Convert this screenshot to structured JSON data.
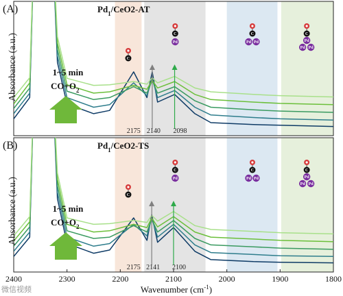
{
  "chart_data": [
    {
      "type": "line",
      "panel_label": "(A)",
      "title": "Pd1/CeO2-AT",
      "ylabel": "Absorbance (a.u.)",
      "x_range": [
        2400,
        1800
      ],
      "annotation": {
        "line1": "1~5 min",
        "line2": "CO+O2"
      },
      "peak_labels": [
        "2175",
        "2140",
        "2098"
      ],
      "peaks": [
        2175,
        2140,
        2098
      ],
      "series": [
        {
          "color": "#0e3b66",
          "values": [
            [
              2400,
              0.22
            ],
            [
              2370,
              0.55
            ],
            [
              2360,
              3.5
            ],
            [
              2330,
              3.5
            ],
            [
              2318,
              1.1
            ],
            [
              2300,
              0.45
            ],
            [
              2250,
              0.3
            ],
            [
              2220,
              0.35
            ],
            [
              2175,
              0.95
            ],
            [
              2150,
              0.55
            ],
            [
              2140,
              0.95
            ],
            [
              2130,
              0.48
            ],
            [
              2098,
              0.6
            ],
            [
              2060,
              0.3
            ],
            [
              2030,
              0.16
            ],
            [
              1950,
              0.13
            ],
            [
              1900,
              0.12
            ],
            [
              1800,
              0.1
            ]
          ]
        },
        {
          "color": "#2e7d8c",
          "values": [
            [
              2400,
              0.3
            ],
            [
              2370,
              0.62
            ],
            [
              2360,
              3.5
            ],
            [
              2330,
              3.5
            ],
            [
              2318,
              1.2
            ],
            [
              2300,
              0.55
            ],
            [
              2250,
              0.4
            ],
            [
              2220,
              0.44
            ],
            [
              2175,
              0.78
            ],
            [
              2150,
              0.58
            ],
            [
              2140,
              0.85
            ],
            [
              2130,
              0.55
            ],
            [
              2098,
              0.66
            ],
            [
              2060,
              0.4
            ],
            [
              2030,
              0.28
            ],
            [
              1950,
              0.24
            ],
            [
              1900,
              0.22
            ],
            [
              1800,
              0.2
            ]
          ]
        },
        {
          "color": "#3a9a60",
          "values": [
            [
              2400,
              0.38
            ],
            [
              2370,
              0.7
            ],
            [
              2360,
              3.5
            ],
            [
              2330,
              3.5
            ],
            [
              2318,
              1.3
            ],
            [
              2300,
              0.65
            ],
            [
              2250,
              0.52
            ],
            [
              2220,
              0.55
            ],
            [
              2175,
              0.72
            ],
            [
              2150,
              0.62
            ],
            [
              2140,
              0.82
            ],
            [
              2130,
              0.62
            ],
            [
              2098,
              0.72
            ],
            [
              2060,
              0.5
            ],
            [
              2030,
              0.4
            ],
            [
              1950,
              0.36
            ],
            [
              1900,
              0.34
            ],
            [
              1800,
              0.32
            ]
          ]
        },
        {
          "color": "#6bbf3a",
          "values": [
            [
              2400,
              0.45
            ],
            [
              2370,
              0.78
            ],
            [
              2360,
              3.5
            ],
            [
              2330,
              3.5
            ],
            [
              2318,
              1.4
            ],
            [
              2300,
              0.75
            ],
            [
              2250,
              0.62
            ],
            [
              2220,
              0.64
            ],
            [
              2175,
              0.74
            ],
            [
              2150,
              0.68
            ],
            [
              2140,
              0.82
            ],
            [
              2130,
              0.7
            ],
            [
              2098,
              0.8
            ],
            [
              2060,
              0.6
            ],
            [
              2030,
              0.52
            ],
            [
              1950,
              0.48
            ],
            [
              1900,
              0.46
            ],
            [
              1800,
              0.44
            ]
          ]
        },
        {
          "color": "#a8e08a",
          "values": [
            [
              2400,
              0.55
            ],
            [
              2370,
              0.86
            ],
            [
              2360,
              3.5
            ],
            [
              2330,
              3.5
            ],
            [
              2318,
              1.5
            ],
            [
              2300,
              0.85
            ],
            [
              2250,
              0.74
            ],
            [
              2220,
              0.75
            ],
            [
              2175,
              0.8
            ],
            [
              2150,
              0.76
            ],
            [
              2140,
              0.86
            ],
            [
              2130,
              0.78
            ],
            [
              2098,
              0.88
            ],
            [
              2060,
              0.7
            ],
            [
              2030,
              0.64
            ],
            [
              1950,
              0.6
            ],
            [
              1900,
              0.58
            ],
            [
              1800,
              0.56
            ]
          ]
        }
      ]
    },
    {
      "type": "line",
      "panel_label": "(B)",
      "title": "Pd1/CeO2-TS",
      "ylabel": "Absorbance (a.u.)",
      "xlabel": "Wavenumber (cm-1)",
      "x_range": [
        2400,
        1800
      ],
      "x_ticks": [
        2400,
        2300,
        2200,
        2100,
        2000,
        1900,
        1800
      ],
      "annotation": {
        "line1": "1~5 min",
        "line2": "CO+O2"
      },
      "peak_labels": [
        "2175",
        "2141",
        "2100"
      ],
      "peaks": [
        2175,
        2141,
        2100
      ],
      "series": [
        {
          "color": "#0e3b66",
          "values": [
            [
              2400,
              0.2
            ],
            [
              2370,
              0.5
            ],
            [
              2360,
              3.5
            ],
            [
              2330,
              3.5
            ],
            [
              2318,
              1.1
            ],
            [
              2300,
              0.4
            ],
            [
              2250,
              0.25
            ],
            [
              2220,
              0.3
            ],
            [
              2175,
              0.8
            ],
            [
              2150,
              0.45
            ],
            [
              2141,
              0.85
            ],
            [
              2130,
              0.42
            ],
            [
              2100,
              0.65
            ],
            [
              2060,
              0.28
            ],
            [
              2030,
              0.15
            ],
            [
              1950,
              0.12
            ],
            [
              1900,
              0.11
            ],
            [
              1800,
              0.1
            ]
          ]
        },
        {
          "color": "#2e7d8c",
          "values": [
            [
              2400,
              0.28
            ],
            [
              2370,
              0.58
            ],
            [
              2360,
              3.5
            ],
            [
              2330,
              3.5
            ],
            [
              2318,
              1.2
            ],
            [
              2300,
              0.5
            ],
            [
              2250,
              0.36
            ],
            [
              2220,
              0.4
            ],
            [
              2175,
              0.7
            ],
            [
              2150,
              0.52
            ],
            [
              2141,
              0.8
            ],
            [
              2130,
              0.5
            ],
            [
              2100,
              0.7
            ],
            [
              2060,
              0.38
            ],
            [
              2030,
              0.26
            ],
            [
              1950,
              0.23
            ],
            [
              1900,
              0.21
            ],
            [
              1800,
              0.2
            ]
          ]
        },
        {
          "color": "#3a9a60",
          "values": [
            [
              2400,
              0.36
            ],
            [
              2370,
              0.66
            ],
            [
              2360,
              3.5
            ],
            [
              2330,
              3.5
            ],
            [
              2318,
              1.3
            ],
            [
              2300,
              0.6
            ],
            [
              2250,
              0.48
            ],
            [
              2220,
              0.5
            ],
            [
              2175,
              0.68
            ],
            [
              2150,
              0.58
            ],
            [
              2141,
              0.78
            ],
            [
              2130,
              0.58
            ],
            [
              2100,
              0.76
            ],
            [
              2060,
              0.48
            ],
            [
              2030,
              0.38
            ],
            [
              1950,
              0.35
            ],
            [
              1900,
              0.33
            ],
            [
              1800,
              0.31
            ]
          ]
        },
        {
          "color": "#6bbf3a",
          "values": [
            [
              2400,
              0.44
            ],
            [
              2370,
              0.74
            ],
            [
              2360,
              3.5
            ],
            [
              2330,
              3.5
            ],
            [
              2318,
              1.4
            ],
            [
              2300,
              0.7
            ],
            [
              2250,
              0.58
            ],
            [
              2220,
              0.6
            ],
            [
              2175,
              0.7
            ],
            [
              2150,
              0.65
            ],
            [
              2141,
              0.8
            ],
            [
              2130,
              0.66
            ],
            [
              2100,
              0.82
            ],
            [
              2060,
              0.58
            ],
            [
              2030,
              0.5
            ],
            [
              1950,
              0.47
            ],
            [
              1900,
              0.45
            ],
            [
              1800,
              0.43
            ]
          ]
        },
        {
          "color": "#a8e08a",
          "values": [
            [
              2400,
              0.52
            ],
            [
              2370,
              0.82
            ],
            [
              2360,
              3.5
            ],
            [
              2330,
              3.5
            ],
            [
              2318,
              1.5
            ],
            [
              2300,
              0.8
            ],
            [
              2250,
              0.7
            ],
            [
              2220,
              0.71
            ],
            [
              2175,
              0.76
            ],
            [
              2150,
              0.73
            ],
            [
              2141,
              0.84
            ],
            [
              2130,
              0.75
            ],
            [
              2100,
              0.9
            ],
            [
              2060,
              0.68
            ],
            [
              2030,
              0.62
            ],
            [
              1950,
              0.59
            ],
            [
              1900,
              0.57
            ],
            [
              1800,
              0.55
            ]
          ]
        }
      ]
    }
  ],
  "regions": [
    {
      "from": 2210,
      "to": 2160,
      "color": "#f8e6da"
    },
    {
      "from": 2155,
      "to": 2040,
      "color": "#e4e4e4"
    },
    {
      "from": 2000,
      "to": 1905,
      "color": "#dce8f2"
    },
    {
      "from": 1898,
      "to": 1800,
      "color": "#e6f0dc"
    }
  ],
  "colors": {
    "arrow_gray": "#808080",
    "arrow_green": "#2eaa4a",
    "big_arrow": "#6fb83a",
    "pd_purple": "#7a2f9f",
    "o_red": "#d63a3a"
  },
  "icons": [
    "co-linear-icon",
    "co-atop-pd-icon",
    "co-bridge-pd2-icon",
    "co-hollow-pd3-icon"
  ],
  "watermark": "微信视频"
}
